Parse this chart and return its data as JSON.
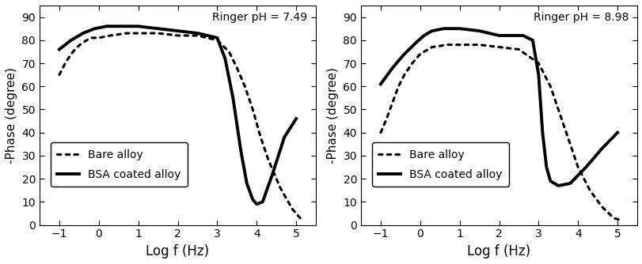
{
  "left": {
    "title": "Ringer pH = 7.49",
    "bare_x": [
      -1.0,
      -0.85,
      -0.7,
      -0.55,
      -0.4,
      -0.2,
      0.0,
      0.3,
      0.7,
      1.0,
      1.5,
      2.0,
      2.5,
      3.0,
      3.3,
      3.5,
      3.7,
      3.9,
      4.1,
      4.3,
      4.6,
      4.9,
      5.1
    ],
    "bare_y": [
      65,
      70,
      74,
      77,
      79,
      81,
      81,
      82,
      83,
      83,
      83,
      82,
      82,
      80,
      75,
      68,
      60,
      50,
      38,
      28,
      16,
      7,
      3
    ],
    "bsa_x": [
      -1.0,
      -0.7,
      -0.4,
      -0.1,
      0.2,
      0.5,
      1.0,
      1.5,
      2.0,
      2.5,
      3.0,
      3.2,
      3.4,
      3.6,
      3.75,
      3.9,
      4.0,
      4.15,
      4.4,
      4.7,
      5.0
    ],
    "bsa_y": [
      76,
      80,
      83,
      85,
      86,
      86,
      86,
      85,
      84,
      83,
      81,
      72,
      55,
      32,
      18,
      11,
      9,
      10,
      22,
      38,
      46
    ]
  },
  "right": {
    "title": "Ringer pH = 8.98",
    "bare_x": [
      -1.0,
      -0.85,
      -0.7,
      -0.55,
      -0.4,
      -0.2,
      0.0,
      0.3,
      0.7,
      1.0,
      1.5,
      2.0,
      2.5,
      3.0,
      3.3,
      3.5,
      3.7,
      4.0,
      4.3,
      4.6,
      4.9,
      5.1
    ],
    "bare_y": [
      40,
      46,
      53,
      60,
      65,
      70,
      74,
      77,
      78,
      78,
      78,
      77,
      76,
      70,
      60,
      50,
      40,
      25,
      15,
      8,
      3,
      2
    ],
    "bsa_x": [
      -1.0,
      -0.7,
      -0.4,
      -0.1,
      0.1,
      0.3,
      0.6,
      1.0,
      1.5,
      2.0,
      2.3,
      2.6,
      2.85,
      3.0,
      3.1,
      3.2,
      3.3,
      3.5,
      3.8,
      4.2,
      4.6,
      5.0
    ],
    "bsa_y": [
      61,
      68,
      74,
      79,
      82,
      84,
      85,
      85,
      84,
      82,
      82,
      82,
      80,
      65,
      40,
      25,
      19,
      17,
      18,
      25,
      33,
      40
    ]
  },
  "xlabel": "Log f (Hz)",
  "ylabel": "-Phase (degree)",
  "xlim": [
    -1.5,
    5.5
  ],
  "ylim": [
    0,
    95
  ],
  "yticks": [
    0,
    10,
    20,
    30,
    40,
    50,
    60,
    70,
    80,
    90
  ],
  "xticks": [
    -1,
    0,
    1,
    2,
    3,
    4,
    5
  ],
  "legend_bare": "Bare alloy",
  "legend_bsa": "BSA coated alloy",
  "bare_linestyle": "dotted",
  "bsa_linestyle": "solid",
  "linewidth_bare": 2.2,
  "linewidth_bsa": 2.8,
  "dot_size": 6
}
